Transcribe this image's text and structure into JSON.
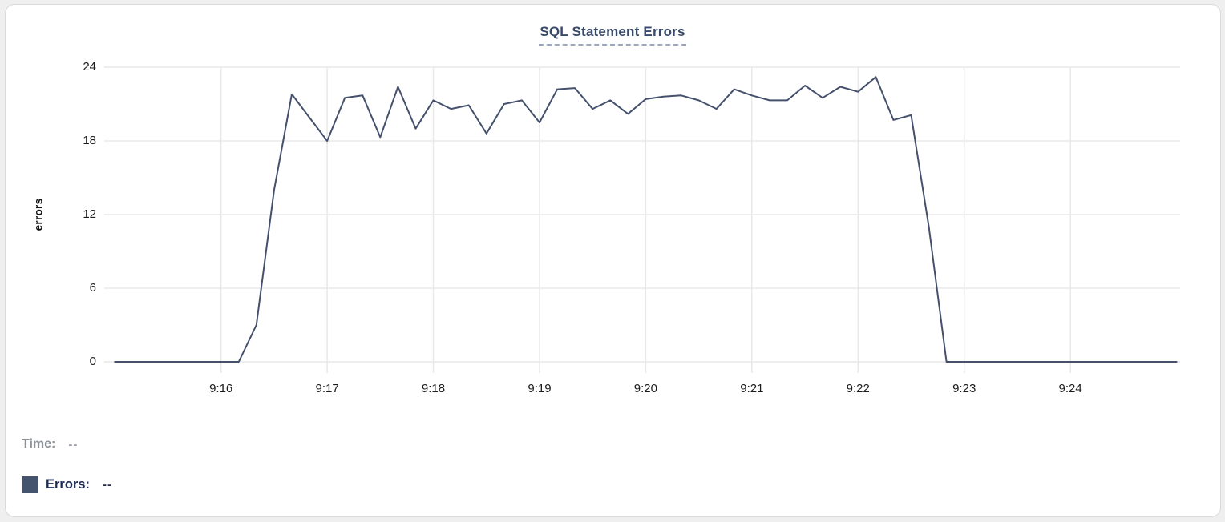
{
  "panel": {
    "title": "SQL Statement Errors"
  },
  "tooltip": {
    "time_label": "Time:",
    "time_value": "--",
    "errors_label": "Errors:",
    "errors_value": "--"
  },
  "colors": {
    "page_bg": "#efefef",
    "panel_bg": "#ffffff",
    "panel_border": "#d9d9d9",
    "title_text": "#384a6a",
    "title_underline": "#9aa8c0",
    "grid_line": "#e9e9e9",
    "series_line": "#44506c",
    "tick_text": "#1c1c1c",
    "axis_label_text": "#111111",
    "time_label_text": "#8d9299",
    "time_value_text": "#9aa0a6",
    "errors_label_text": "#1f2c52",
    "legend_swatch": "#44536e"
  },
  "chart_data": {
    "type": "line",
    "title": "SQL Statement Errors",
    "xlabel": "",
    "ylabel": "errors",
    "ylim": [
      0,
      24
    ],
    "grid": true,
    "legend_position": "none",
    "y_ticks": [
      0,
      6,
      12,
      18,
      24
    ],
    "x_tick_labels": [
      "9:16",
      "9:17",
      "9:18",
      "9:19",
      "9:20",
      "9:21",
      "9:22",
      "9:23",
      "9:24"
    ],
    "x_tick_seconds": [
      60,
      120,
      180,
      240,
      300,
      360,
      420,
      480,
      540
    ],
    "x_range_seconds": [
      -6,
      602
    ],
    "series": [
      {
        "name": "Errors",
        "start_time": "9:15:00",
        "interval_seconds": 10,
        "values": [
          0,
          0,
          0,
          0,
          0,
          0,
          0,
          0,
          3,
          14,
          21.8,
          19.9,
          18,
          21.5,
          21.7,
          18.3,
          22.4,
          19,
          21.3,
          20.6,
          20.9,
          18.6,
          21,
          21.3,
          19.5,
          22.2,
          22.3,
          20.6,
          21.3,
          20.2,
          21.4,
          21.6,
          21.7,
          21.3,
          20.6,
          22.2,
          21.7,
          21.3,
          21.3,
          22.5,
          21.5,
          22.4,
          22,
          23.2,
          19.7,
          20.1,
          11,
          0,
          0,
          0,
          0,
          0,
          0,
          0,
          0,
          0,
          0,
          0,
          0,
          0,
          0
        ]
      }
    ]
  }
}
